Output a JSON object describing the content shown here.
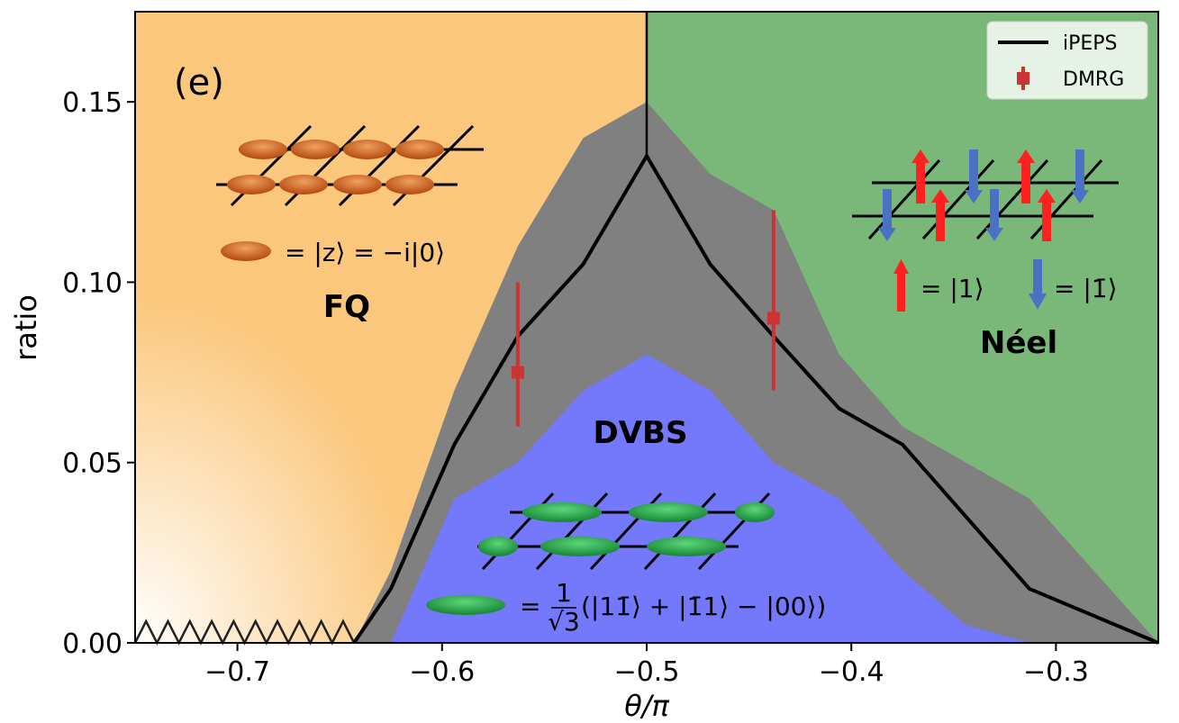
{
  "chart_data": {
    "type": "line",
    "panel_label": "(e)",
    "xlabel": "θ/π",
    "ylabel": "ratio",
    "xlim": [
      -0.75,
      -0.25
    ],
    "ylim": [
      0,
      0.175
    ],
    "x_ticks": [
      -0.7,
      -0.6,
      -0.5,
      -0.4,
      -0.3
    ],
    "x_tick_labels": [
      "−0.7",
      "−0.6",
      "−0.5",
      "−0.4",
      "−0.3"
    ],
    "y_ticks": [
      0.0,
      0.05,
      0.1,
      0.15
    ],
    "y_tick_labels": [
      "0.00",
      "0.05",
      "0.10",
      "0.15"
    ],
    "grid": false,
    "legend_position": "top-right",
    "legend": [
      {
        "label": "iPEPS",
        "style": "line",
        "color": "#000000"
      },
      {
        "label": "DMRG",
        "style": "errorbar",
        "color": "#cc3333"
      }
    ],
    "series": [
      {
        "name": "iPEPS",
        "x": [
          -0.643,
          -0.625,
          -0.594,
          -0.563,
          -0.531,
          -0.5,
          -0.469,
          -0.438,
          -0.406,
          -0.375,
          -0.344,
          -0.313,
          -0.25
        ],
        "y": [
          0.0,
          0.015,
          0.055,
          0.085,
          0.105,
          0.135,
          0.105,
          0.085,
          0.065,
          0.055,
          0.035,
          0.015,
          0.0
        ]
      },
      {
        "name": "DMRG",
        "x": [
          -0.563,
          -0.438
        ],
        "y": [
          0.075,
          0.09
        ],
        "yerr_low": [
          0.06,
          0.07
        ],
        "yerr_high": [
          0.1,
          0.12
        ]
      }
    ],
    "gray_band": {
      "x": [
        -0.643,
        -0.625,
        -0.594,
        -0.563,
        -0.531,
        -0.5,
        -0.469,
        -0.438,
        -0.406,
        -0.375,
        -0.344,
        -0.313,
        -0.25
      ],
      "upper": [
        0.0,
        0.02,
        0.07,
        0.11,
        0.14,
        0.15,
        0.13,
        0.12,
        0.08,
        0.06,
        0.05,
        0.04,
        0.0
      ],
      "lower": [
        0.0,
        0.0,
        0.0,
        0.0,
        0.0,
        0.0,
        0.0,
        0.0,
        0.0,
        0.0,
        0.0,
        0.0,
        0.0
      ]
    },
    "dvbs_region": {
      "x": [
        -0.625,
        -0.594,
        -0.563,
        -0.531,
        -0.5,
        -0.469,
        -0.438,
        -0.406,
        -0.375,
        -0.344,
        -0.313
      ],
      "y": [
        0.0,
        0.04,
        0.05,
        0.07,
        0.08,
        0.07,
        0.05,
        0.04,
        0.02,
        0.005,
        0.0
      ]
    },
    "phase_boundary_x": -0.5,
    "regions": [
      {
        "label": "FQ",
        "color": "#fbc77c"
      },
      {
        "label": "Néel",
        "color": "#7ab87a"
      },
      {
        "label": "DVBS",
        "color": "#7478fa"
      }
    ],
    "annotations": {
      "fq_equation": "= |z⟩ = −i|0⟩",
      "neel_up": "= |1⟩",
      "neel_down": "= |1̄⟩",
      "dvbs_equation": "(|11̄⟩ + |1̄1⟩ − |00⟩)",
      "dvbs_prefix": "=",
      "dvbs_frac_num": "1",
      "dvbs_frac_den": "√3"
    },
    "colors": {
      "fq": "#fbc77c",
      "neel": "#7ab87a",
      "dvbs": "#7478fa",
      "gray": "#808080",
      "ipeps": "#000000",
      "dmrg": "#cc3333",
      "spin_up": "#ff2020",
      "spin_down": "#4a72c4",
      "fq_disk": "#d86a2a",
      "dvbs_disk": "#2aa84a"
    }
  }
}
